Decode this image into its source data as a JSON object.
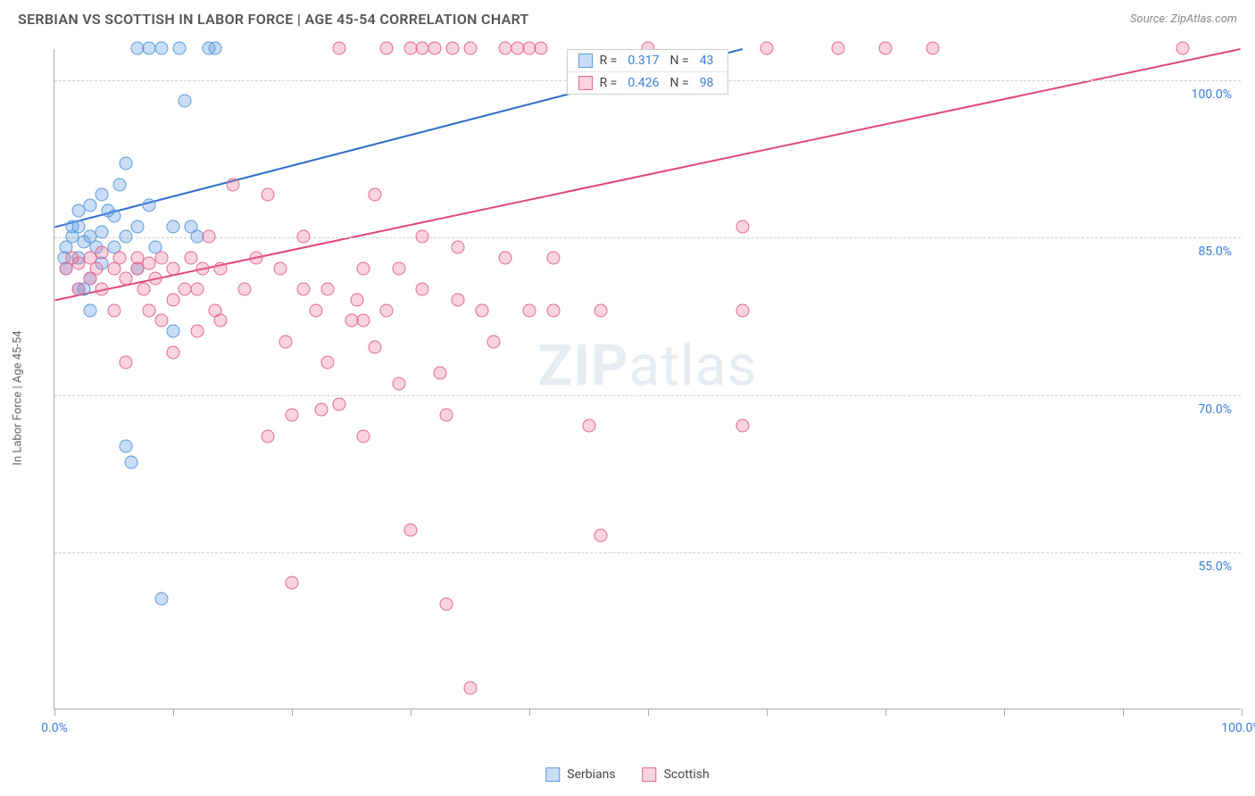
{
  "title": "SERBIAN VS SCOTTISH IN LABOR FORCE | AGE 45-54 CORRELATION CHART",
  "source": "Source: ZipAtlas.com",
  "ylabel": "In Labor Force | Age 45-54",
  "watermark_a": "ZIP",
  "watermark_b": "atlas",
  "chart": {
    "type": "scatter",
    "xlim": [
      0,
      100
    ],
    "ylim": [
      40,
      103
    ],
    "yticks": [
      {
        "v": 55.0,
        "label": "55.0%"
      },
      {
        "v": 70.0,
        "label": "70.0%"
      },
      {
        "v": 85.0,
        "label": "85.0%"
      },
      {
        "v": 100.0,
        "label": "100.0%"
      }
    ],
    "xticks_major": [
      0,
      100
    ],
    "xticks_minor": [
      10,
      20,
      30,
      40,
      50,
      60,
      70,
      80,
      90
    ],
    "xtick_labels": {
      "0": "0.0%",
      "100": "100.0%"
    },
    "background_color": "#ffffff",
    "grid_color": "#d0d0d0",
    "marker_radius": 7.5,
    "series": [
      {
        "name": "Serbians",
        "color_fill": "rgba(100,160,230,0.35)",
        "color_stroke": "#5a9bd8",
        "trend_color": "#2f6fc9",
        "trend": {
          "x1": 0,
          "y1": 86,
          "x2": 58,
          "y2": 103
        },
        "R": "0.317",
        "N": "43",
        "points": [
          [
            1,
            84
          ],
          [
            1.5,
            85
          ],
          [
            2,
            86
          ],
          [
            2,
            83
          ],
          [
            2.5,
            84.5
          ],
          [
            3,
            85
          ],
          [
            3,
            88
          ],
          [
            3.5,
            84
          ],
          [
            4,
            85.5
          ],
          [
            4,
            82.5
          ],
          [
            5,
            87
          ],
          [
            5,
            84
          ],
          [
            5.5,
            90
          ],
          [
            6,
            92
          ],
          [
            6,
            85
          ],
          [
            7,
            86
          ],
          [
            7,
            103
          ],
          [
            8,
            103
          ],
          [
            8.5,
            84
          ],
          [
            9,
            103
          ],
          [
            10,
            86
          ],
          [
            10,
            76
          ],
          [
            11,
            98
          ],
          [
            12,
            85
          ],
          [
            13,
            103
          ],
          [
            13.5,
            103
          ],
          [
            6,
            65
          ],
          [
            6.5,
            63.5
          ],
          [
            9,
            50.5
          ],
          [
            2,
            80
          ],
          [
            3,
            78
          ],
          [
            2,
            87.5
          ],
          [
            4,
            89
          ],
          [
            1,
            82
          ],
          [
            0.8,
            83
          ],
          [
            3,
            81
          ],
          [
            1.5,
            86
          ],
          [
            2.5,
            80
          ],
          [
            7,
            82
          ],
          [
            8,
            88
          ],
          [
            4.5,
            87.5
          ],
          [
            11.5,
            86
          ],
          [
            10.5,
            103
          ]
        ]
      },
      {
        "name": "Scottish",
        "color_fill": "rgba(235,110,150,0.30)",
        "color_stroke": "#e26790",
        "trend_color": "#e0457c",
        "trend": {
          "x1": 0,
          "y1": 79,
          "x2": 100,
          "y2": 103
        },
        "R": "0.426",
        "N": "98",
        "points": [
          [
            1,
            82
          ],
          [
            1.5,
            83
          ],
          [
            2,
            82.5
          ],
          [
            2,
            80
          ],
          [
            3,
            83
          ],
          [
            3,
            81
          ],
          [
            3.5,
            82
          ],
          [
            4,
            83.5
          ],
          [
            4,
            80
          ],
          [
            5,
            82
          ],
          [
            5,
            78
          ],
          [
            5.5,
            83
          ],
          [
            6,
            81
          ],
          [
            6,
            73
          ],
          [
            7,
            82
          ],
          [
            7,
            83
          ],
          [
            7.5,
            80
          ],
          [
            8,
            82.5
          ],
          [
            8,
            78
          ],
          [
            8.5,
            81
          ],
          [
            9,
            83
          ],
          [
            9,
            77
          ],
          [
            10,
            82
          ],
          [
            10,
            79
          ],
          [
            10,
            74
          ],
          [
            11,
            80
          ],
          [
            11.5,
            83
          ],
          [
            12,
            80
          ],
          [
            12.5,
            82
          ],
          [
            13,
            85
          ],
          [
            13.5,
            78
          ],
          [
            14,
            82
          ],
          [
            14,
            77
          ],
          [
            15,
            90
          ],
          [
            16,
            80
          ],
          [
            18,
            89
          ],
          [
            18,
            66
          ],
          [
            19.5,
            75
          ],
          [
            20,
            68
          ],
          [
            20,
            52
          ],
          [
            21,
            85
          ],
          [
            21,
            80
          ],
          [
            22,
            78
          ],
          [
            22.5,
            68.5
          ],
          [
            23,
            80
          ],
          [
            24,
            103
          ],
          [
            25,
            77
          ],
          [
            25.5,
            79
          ],
          [
            26,
            77
          ],
          [
            26,
            82
          ],
          [
            27,
            89
          ],
          [
            27,
            74.5
          ],
          [
            28,
            103
          ],
          [
            28,
            78
          ],
          [
            29,
            71
          ],
          [
            30,
            103
          ],
          [
            30,
            57
          ],
          [
            31,
            103
          ],
          [
            31,
            85
          ],
          [
            32,
            103
          ],
          [
            32.5,
            72
          ],
          [
            33,
            68
          ],
          [
            33,
            50
          ],
          [
            33.5,
            103
          ],
          [
            34,
            84
          ],
          [
            35,
            103
          ],
          [
            35,
            42
          ],
          [
            36,
            78
          ],
          [
            37,
            75
          ],
          [
            38,
            103
          ],
          [
            39,
            103
          ],
          [
            40,
            78
          ],
          [
            40,
            103
          ],
          [
            41,
            103
          ],
          [
            42,
            83
          ],
          [
            45,
            67
          ],
          [
            46,
            56.5
          ],
          [
            50,
            103
          ],
          [
            58,
            86
          ],
          [
            58,
            67
          ],
          [
            66,
            103
          ],
          [
            70,
            103
          ],
          [
            74,
            103
          ],
          [
            58,
            78
          ],
          [
            60,
            103
          ],
          [
            95,
            103
          ],
          [
            42,
            78
          ],
          [
            38,
            83
          ],
          [
            46,
            78
          ],
          [
            12,
            76
          ],
          [
            17,
            83
          ],
          [
            19,
            82
          ],
          [
            23,
            73
          ],
          [
            24,
            69
          ],
          [
            26,
            66
          ],
          [
            29,
            82
          ],
          [
            31,
            80
          ],
          [
            34,
            79
          ]
        ]
      }
    ]
  },
  "legend_bottom": [
    {
      "label": "Serbians",
      "fill": "rgba(100,160,230,0.35)",
      "stroke": "#5a9bd8"
    },
    {
      "label": "Scottish",
      "fill": "rgba(235,110,150,0.30)",
      "stroke": "#e26790"
    }
  ]
}
